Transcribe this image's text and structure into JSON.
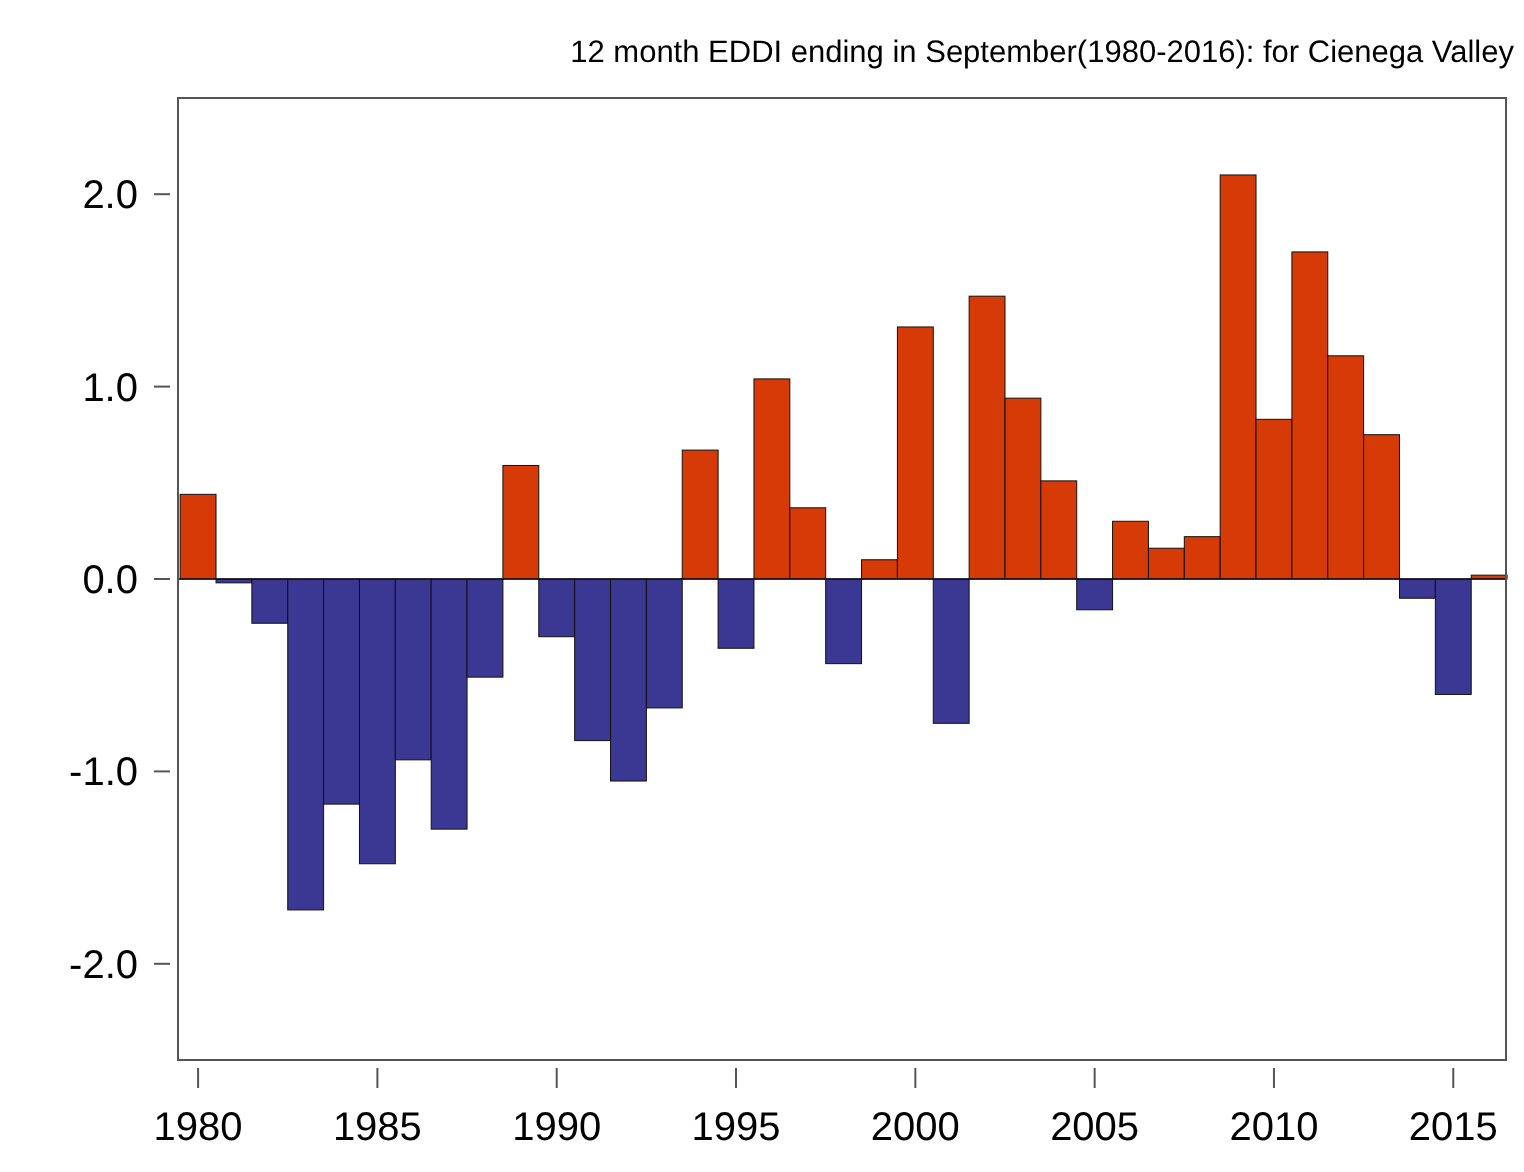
{
  "chart_data": {
    "type": "bar",
    "title": "12 month EDDI ending in September(1980-2016): for Cienega Valley",
    "x": [
      1980,
      1981,
      1982,
      1983,
      1984,
      1985,
      1986,
      1987,
      1988,
      1989,
      1990,
      1991,
      1992,
      1993,
      1994,
      1995,
      1996,
      1997,
      1998,
      1999,
      2000,
      2001,
      2002,
      2003,
      2004,
      2005,
      2006,
      2007,
      2008,
      2009,
      2010,
      2011,
      2012,
      2013,
      2014,
      2015,
      2016
    ],
    "values": [
      0.44,
      -0.02,
      -0.23,
      -1.72,
      -1.17,
      -1.48,
      -0.94,
      -1.3,
      -0.51,
      0.59,
      -0.3,
      -0.84,
      -1.05,
      -0.67,
      0.67,
      -0.36,
      1.04,
      0.37,
      -0.44,
      0.1,
      1.31,
      -0.75,
      1.47,
      0.94,
      0.51,
      -0.16,
      0.3,
      0.16,
      0.22,
      2.1,
      0.83,
      1.7,
      1.16,
      0.75,
      -0.1,
      -0.6,
      0.02
    ],
    "colors": [
      "#d63a06",
      "#3b3893",
      "#3b3893",
      "#3b3893",
      "#3b3893",
      "#3b3893",
      "#3b3893",
      "#3b3893",
      "#3b3893",
      "#d63a06",
      "#3b3893",
      "#3b3893",
      "#3b3893",
      "#3b3893",
      "#d63a06",
      "#3b3893",
      "#d63a06",
      "#d63a06",
      "#3b3893",
      "#d63a06",
      "#d63a06",
      "#3b3893",
      "#d63a06",
      "#d63a06",
      "#d63a06",
      "#3b3893",
      "#d63a06",
      "#d63a06",
      "#d63a06",
      "#d63a06",
      "#d63a06",
      "#d63a06",
      "#d63a06",
      "#d63a06",
      "#3b3893",
      "#3b3893",
      "#d63a06"
    ],
    "xlim": [
      1979.44,
      2016.47
    ],
    "xticks": [
      1980,
      1985,
      1990,
      1995,
      2000,
      2005,
      2010,
      2015
    ],
    "ylim": [
      -2.5,
      2.5
    ],
    "yticks": [
      {
        "value": -2,
        "label": "-2.0"
      },
      {
        "value": -1,
        "label": "-1.0"
      },
      {
        "value": 0,
        "label": "0.0"
      },
      {
        "value": 1,
        "label": "1.0"
      },
      {
        "value": 2,
        "label": "2.0"
      }
    ]
  }
}
